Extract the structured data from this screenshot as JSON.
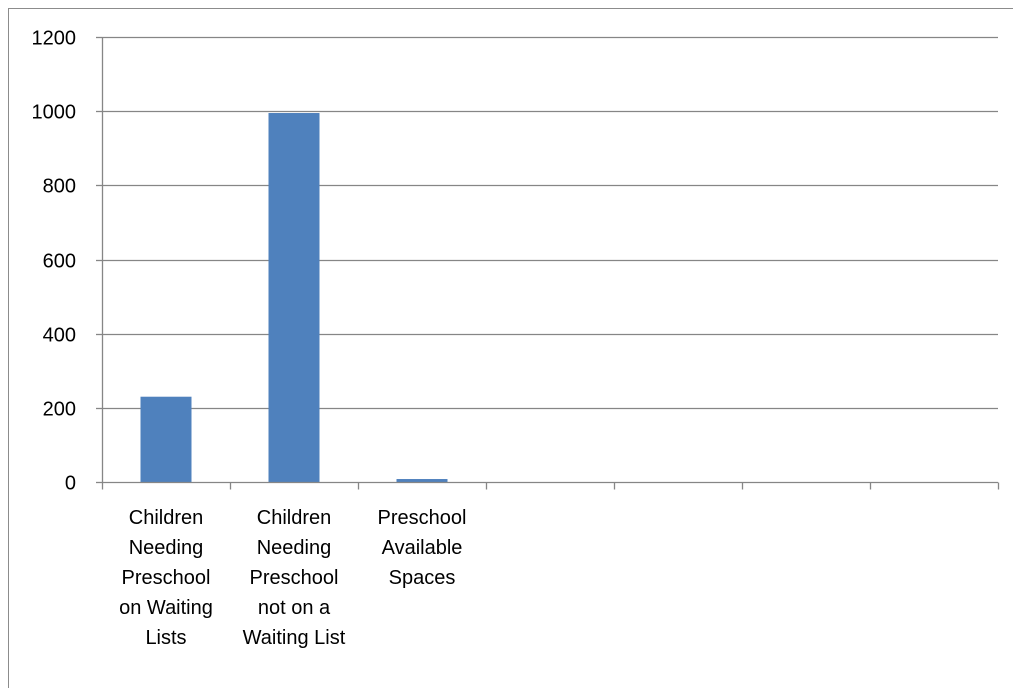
{
  "chart_data": {
    "type": "bar",
    "categories": [
      [
        "Children",
        "Needing",
        "Preschool",
        "on Waiting",
        "Lists"
      ],
      [
        "Children",
        "Needing",
        "Preschool",
        "not on a",
        "Waiting List"
      ],
      [
        "Preschool",
        "Available",
        "Spaces"
      ],
      [],
      [],
      [],
      []
    ],
    "values": [
      230,
      995,
      8,
      null,
      null,
      null,
      null
    ],
    "ylim": [
      0,
      1200
    ],
    "yticks": [
      0,
      200,
      400,
      600,
      800,
      1000,
      1200
    ],
    "ytick_labels": [
      "0",
      "200",
      "400",
      "600",
      "800",
      "1000",
      "1200"
    ],
    "grid": true,
    "bar_color": "#4f81bd",
    "gridline_color": "#868686",
    "title": "",
    "xlabel": "",
    "ylabel": ""
  }
}
